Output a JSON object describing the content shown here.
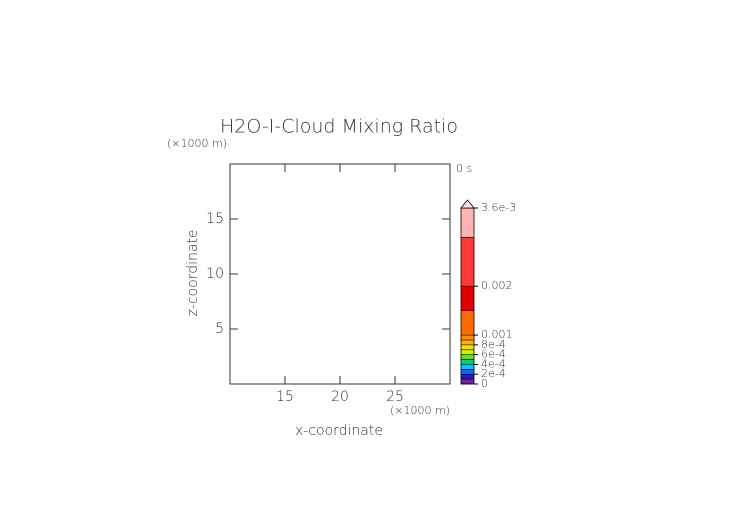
{
  "chart_data": {
    "type": "contour",
    "title": "H2O-I-Cloud Mixing Ratio",
    "x_label": "x-coordinate",
    "y_label": "z-coordinate",
    "x_unit": "(×1000 m)",
    "y_unit": "(×1000 m)",
    "time_label": "0 s",
    "xlim": [
      10,
      30
    ],
    "ylim": [
      0,
      20
    ],
    "xticks": [
      15,
      20,
      25
    ],
    "yticks": [
      5,
      10,
      15
    ],
    "colorbar": {
      "lim": [
        0,
        0.0036
      ],
      "ticks": [
        0,
        {
          "value": 0.0002,
          "label": "2e-4"
        },
        {
          "value": 0.0004,
          "label": "4e-4"
        },
        {
          "value": 0.0006,
          "label": "6e-4"
        },
        {
          "value": 0.0008,
          "label": "8e-4"
        },
        0.001,
        0.002,
        {
          "value": 0.0036,
          "label": "3.6e-3"
        }
      ],
      "levels": [
        0,
        0.0001,
        0.0002,
        0.0003,
        0.0004,
        0.0005,
        0.0006,
        0.0007,
        0.0008,
        0.0009,
        0.001,
        0.0015,
        0.002,
        0.003,
        0.0036
      ],
      "colors": [
        "#7a1fa2",
        "#2020b0",
        "#2060ff",
        "#00c8ff",
        "#00d080",
        "#60e020",
        "#d0f000",
        "#ffe000",
        "#ffb000",
        "#ff8c00",
        "#ff6a00",
        "#e00000",
        "#ff3838",
        "#ffb4b4"
      ]
    }
  }
}
